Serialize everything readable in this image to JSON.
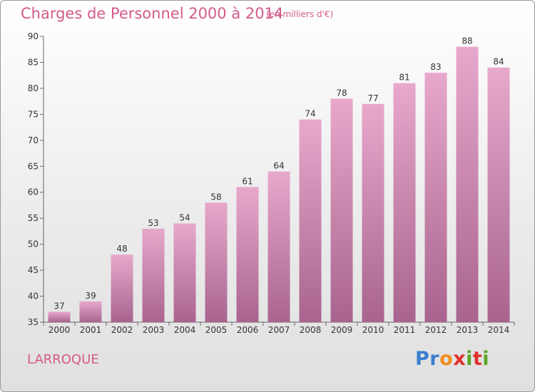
{
  "header": {
    "title": "Charges de Personnel 2000 à 2014",
    "subtitle": "(en milliers d'€)"
  },
  "footer": {
    "town": "LARROQUE",
    "logo": "Proxiti"
  },
  "colors": {
    "title": "#d45a8a",
    "bar_top": "#e8a8cc",
    "bar_bottom": "#a8648e",
    "logo_letters": [
      "#3a7fd0",
      "#3a7fd0",
      "#f08c1e",
      "#e0302c",
      "#5aa628",
      "#e0302c",
      "#5aa628"
    ]
  },
  "chart_data": {
    "type": "bar",
    "title": "Charges de Personnel 2000 à 2014",
    "subtitle": "(en milliers d'€)",
    "categories": [
      "2000",
      "2001",
      "2002",
      "2003",
      "2004",
      "2005",
      "2006",
      "2007",
      "2008",
      "2009",
      "2010",
      "2011",
      "2012",
      "2013",
      "2014"
    ],
    "values": [
      37,
      39,
      48,
      53,
      54,
      58,
      61,
      64,
      74,
      78,
      77,
      81,
      83,
      88,
      84
    ],
    "ylim": [
      35,
      90
    ],
    "yticks": [
      35,
      40,
      45,
      50,
      55,
      60,
      65,
      70,
      75,
      80,
      85,
      90
    ],
    "grid": false,
    "data_labels": true
  }
}
